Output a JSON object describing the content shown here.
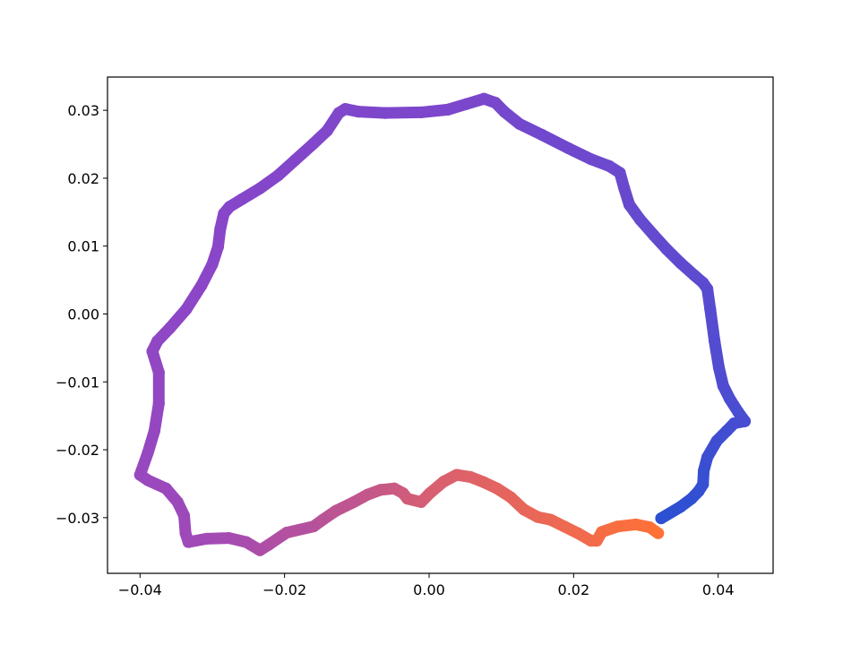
{
  "chart_data": {
    "type": "line",
    "x": [
      0.0321,
      0.0348,
      0.0363,
      0.0373,
      0.0379,
      0.038,
      0.0385,
      0.0398,
      0.0412,
      0.0422,
      0.0437,
      0.0428,
      0.0416,
      0.0407,
      0.0401,
      0.0395,
      0.0389,
      0.0385,
      0.0379,
      0.0367,
      0.0348,
      0.0329,
      0.0311,
      0.0292,
      0.0277,
      0.027,
      0.0264,
      0.0249,
      0.0224,
      0.0193,
      0.0156,
      0.0125,
      0.0104,
      0.0092,
      0.0076,
      0.0051,
      0.0026,
      -0.0011,
      -0.0061,
      -0.0098,
      -0.0116,
      -0.0125,
      -0.0141,
      -0.016,
      -0.0185,
      -0.0209,
      -0.0234,
      -0.0259,
      -0.0276,
      -0.0284,
      -0.0289,
      -0.0292,
      -0.03,
      -0.0315,
      -0.0336,
      -0.0358,
      -0.0376,
      -0.0383,
      -0.0374,
      -0.0374,
      -0.038,
      -0.0389,
      -0.0398,
      -0.04,
      -0.0389,
      -0.0364,
      -0.0348,
      -0.0339,
      -0.0337,
      -0.0333,
      -0.0308,
      -0.0277,
      -0.0253,
      -0.0234,
      -0.0222,
      -0.0197,
      -0.016,
      -0.0147,
      -0.0129,
      -0.0104,
      -0.0085,
      -0.0067,
      -0.0048,
      -0.0036,
      -0.003,
      -0.0011,
      0.0001,
      0.002,
      0.0038,
      0.0057,
      0.0076,
      0.0094,
      0.0113,
      0.0131,
      0.015,
      0.0168,
      0.0187,
      0.0206,
      0.0224,
      0.0232,
      0.0239,
      0.0261,
      0.0286,
      0.0305,
      0.0317
    ],
    "y": [
      -0.0301,
      -0.0284,
      -0.0272,
      -0.0261,
      -0.0251,
      -0.0231,
      -0.0211,
      -0.0187,
      -0.0172,
      -0.0161,
      -0.0158,
      -0.0145,
      -0.0125,
      -0.0106,
      -0.0079,
      -0.004,
      0.0007,
      0.0037,
      0.0046,
      0.0057,
      0.0075,
      0.0095,
      0.0116,
      0.0139,
      0.0161,
      0.0185,
      0.0208,
      0.0218,
      0.0228,
      0.0244,
      0.0264,
      0.028,
      0.0298,
      0.0311,
      0.0317,
      0.0309,
      0.0301,
      0.0297,
      0.0296,
      0.0298,
      0.0302,
      0.0296,
      0.027,
      0.0251,
      0.0227,
      0.0204,
      0.0185,
      0.0169,
      0.0158,
      0.0148,
      0.0125,
      0.0099,
      0.0073,
      0.0042,
      0.0007,
      -0.002,
      -0.004,
      -0.0055,
      -0.0086,
      -0.0132,
      -0.0172,
      -0.0204,
      -0.0231,
      -0.0237,
      -0.0245,
      -0.0257,
      -0.0277,
      -0.0297,
      -0.0323,
      -0.0336,
      -0.0331,
      -0.033,
      -0.0336,
      -0.0348,
      -0.034,
      -0.0322,
      -0.0313,
      -0.0303,
      -0.029,
      -0.0277,
      -0.0266,
      -0.0259,
      -0.0257,
      -0.0264,
      -0.0272,
      -0.0277,
      -0.0264,
      -0.0247,
      -0.0237,
      -0.024,
      -0.0248,
      -0.0257,
      -0.027,
      -0.0288,
      -0.0299,
      -0.0303,
      -0.0313,
      -0.0323,
      -0.0334,
      -0.0334,
      -0.0321,
      -0.0313,
      -0.031,
      -0.0314,
      -0.0323
    ],
    "colors": [
      "#2c50d2",
      "#5a4bd0",
      "#7a47cc",
      "#8a46c8",
      "#a049b8",
      "#d9606e",
      "#ff7137"
    ],
    "xlim": [
      -0.0445,
      0.0476
    ],
    "xticks": [
      {
        "value": -0.04,
        "label": "−0.04"
      },
      {
        "value": -0.02,
        "label": "−0.02"
      },
      {
        "value": 0,
        "label": "0.00"
      },
      0.02,
      0.04
    ],
    "ylim": [
      -0.0382,
      0.0349
    ],
    "yticks": [
      {
        "value": -0.03,
        "label": "−0.03"
      },
      {
        "value": -0.02,
        "label": "−0.02"
      },
      {
        "value": -0.01,
        "label": "−0.01"
      },
      {
        "value": 0,
        "label": "0.00"
      },
      0.01,
      0.02,
      0.03
    ]
  }
}
